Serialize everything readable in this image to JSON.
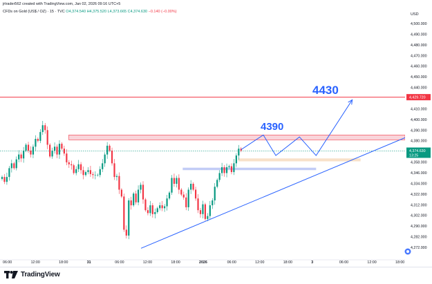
{
  "header": {
    "created_by": "jrtrader562 created with TradingView.com, Jan 02, 2026 09:16 UTC+5"
  },
  "symbol": {
    "name": "CFDs on Gold (US$ / OZ) · 15 · TVC",
    "open": "O4,374.540",
    "high": "H4,375.520",
    "low": "L4,373.665",
    "close": "C4,374.630",
    "change": "−0.140 (−0.00%)"
  },
  "price_axis": {
    "currency": "USD",
    "ticks": [
      "4,500.000",
      "4,490.000",
      "4,480.000",
      "4,470.000",
      "4,460.000",
      "4,450.000",
      "4,440.000",
      "4,420.000",
      "4,410.000",
      "4,400.000",
      "4,390.000",
      "4,380.000",
      "4,368.000",
      "4,358.000",
      "4,346.000",
      "4,334.000",
      "4,322.000",
      "4,312.000",
      "4,302.000",
      "4,290.000",
      "4,282.000",
      "4,272.000"
    ],
    "red_line_label": "4,429.720",
    "current_price_label": "4,374.630",
    "countdown_label": "13:25"
  },
  "time_axis": {
    "ticks": [
      "06:00",
      "12:00",
      "18:00",
      "31",
      "06:00",
      "12:00",
      "18:00",
      "2026",
      "06:00",
      "12:00",
      "18:00",
      "3",
      "06:00",
      "12:00",
      "18:00"
    ]
  },
  "annotations": {
    "target_high": "4430",
    "target_mid": "4390"
  },
  "colors": {
    "up": "#089981",
    "down": "#f23645",
    "drawing": "#2962ff",
    "annotation_text": "#2962ff",
    "resistance_zone": "#f8cdd3",
    "support_zone": "#f7dcc0",
    "blue_zone": "#b7c3f5",
    "red_line": "#f23645"
  },
  "branding": {
    "logo_text": "TradingView"
  },
  "chart_data": {
    "type": "candlestick",
    "title": "",
    "xlabel": "",
    "ylabel": "USD",
    "ylim": [
      4266,
      4508
    ],
    "x_range_bars": [
      0,
      290
    ],
    "candles_count_approx": 170,
    "red_horizontal_line": 4429.72,
    "current_price": 4374.63,
    "zones": [
      {
        "name": "red-resistance-zone",
        "from": 4386,
        "to": 4391,
        "bar_from": 48,
        "bar_to": 290
      },
      {
        "name": "orange-support-zone",
        "from": 4364,
        "to": 4367,
        "bar_from": 170,
        "bar_to": 258
      },
      {
        "name": "blue-zone",
        "from": 4355,
        "to": 4357.5,
        "bar_from": 130,
        "bar_to": 226
      }
    ],
    "trendline": {
      "from": [
        100,
        4275
      ],
      "to": [
        293,
        4390
      ]
    },
    "projection_path": [
      [
        172,
        4376
      ],
      [
        188,
        4391
      ],
      [
        197,
        4370
      ],
      [
        214,
        4389
      ],
      [
        226,
        4370
      ],
      [
        252,
        4427
      ]
    ],
    "closes": [
      4348,
      4343,
      4348,
      4357,
      4362,
      4357,
      4366,
      4371,
      4367,
      4375,
      4381,
      4375,
      4371,
      4379,
      4387,
      4385,
      4394,
      4401,
      4396,
      4381,
      4369,
      4375,
      4379,
      4371,
      4382,
      4377,
      4372,
      4363,
      4361,
      4360,
      4352,
      4356,
      4361,
      4355,
      4350,
      4353,
      4355,
      4351,
      4350,
      4350,
      4350,
      4356,
      4362,
      4371,
      4380,
      4375,
      4362,
      4348,
      4349,
      4335,
      4328,
      4294,
      4288,
      4324,
      4319,
      4331,
      4322,
      4335,
      4340,
      4325,
      4314,
      4311,
      4319,
      4310,
      4312,
      4316,
      4319,
      4316,
      4318,
      4326,
      4332,
      4347,
      4341,
      4347,
      4335,
      4330,
      4327,
      4317,
      4335,
      4341,
      4335,
      4326,
      4314,
      4310,
      4320,
      4305,
      4308,
      4319,
      4324,
      4338,
      4345,
      4352,
      4358,
      4352,
      4358,
      4359,
      4353,
      4362,
      4370,
      4377,
      4375
    ]
  }
}
